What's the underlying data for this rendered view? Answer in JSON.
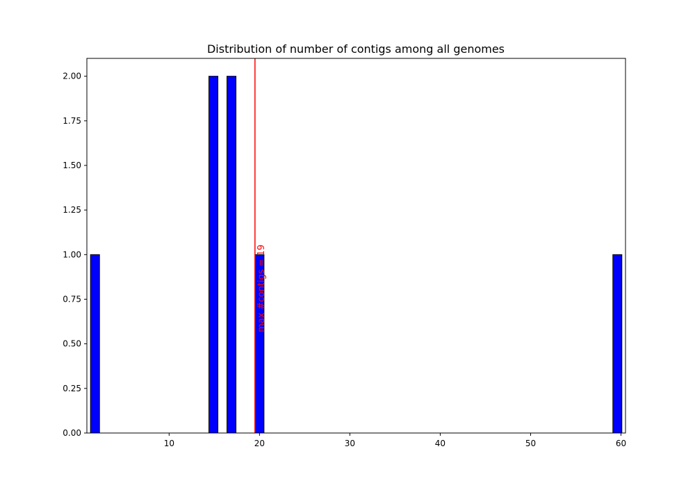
{
  "chart_data": {
    "type": "bar",
    "title": "Distribution of number of contigs among all genomes",
    "xlabel": "",
    "ylabel": "",
    "xlim": [
      0.9,
      60.5
    ],
    "ylim": [
      0,
      2.1
    ],
    "x_ticks": [
      10,
      20,
      30,
      40,
      50,
      60
    ],
    "x_tick_labels": [
      "10",
      "20",
      "30",
      "40",
      "50",
      "60"
    ],
    "y_ticks": [
      0.0,
      0.25,
      0.5,
      0.75,
      1.0,
      1.25,
      1.5,
      1.75,
      2.0
    ],
    "y_tick_labels": [
      "0.00",
      "0.25",
      "0.50",
      "0.75",
      "1.00",
      "1.25",
      "1.50",
      "1.75",
      "2.00"
    ],
    "bar_width": 1.0,
    "bars": [
      {
        "x": 1.8,
        "value": 1
      },
      {
        "x": 14.9,
        "value": 2
      },
      {
        "x": 16.9,
        "value": 2
      },
      {
        "x": 20.0,
        "value": 1
      },
      {
        "x": 59.6,
        "value": 1
      }
    ],
    "bar_color": "#0000ff",
    "bar_edge_color": "#000000",
    "reference_line": {
      "x": 19.5,
      "color": "#ff0000",
      "label": "max #contigs = 19"
    },
    "grid": false,
    "legend": "none"
  }
}
